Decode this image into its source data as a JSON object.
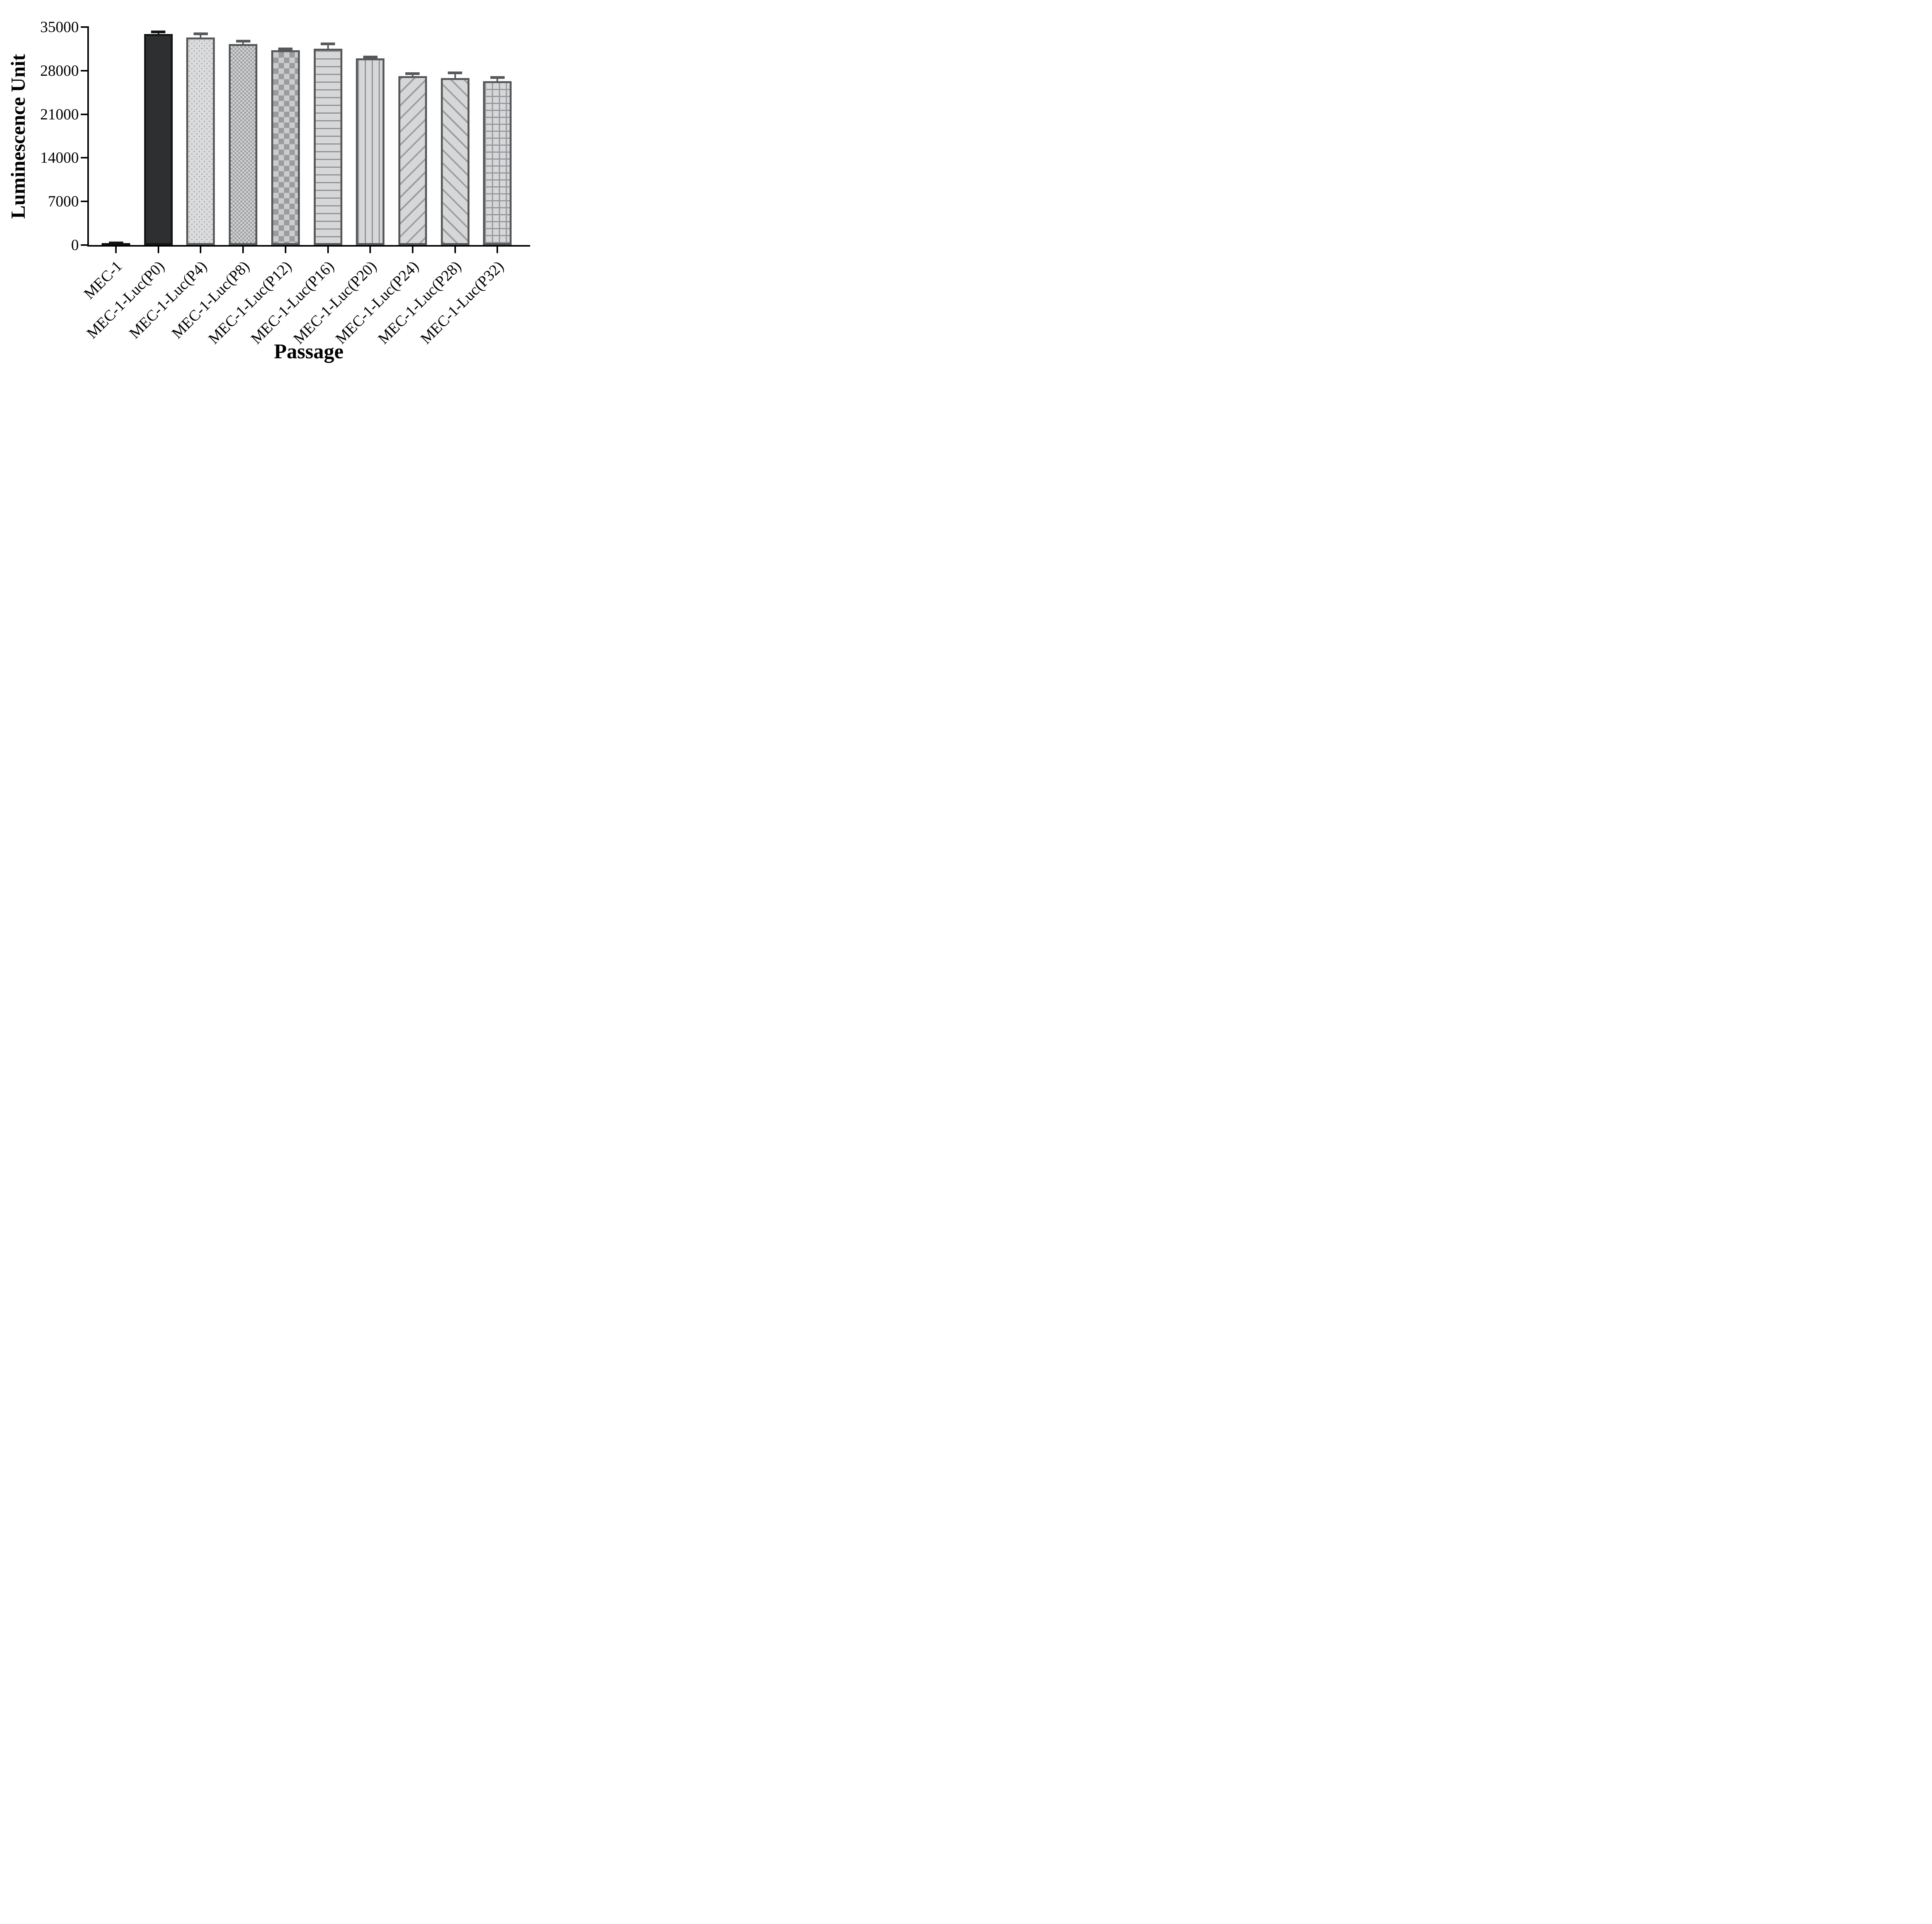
{
  "figure": {
    "background": "#ffffff"
  },
  "chart_data": {
    "type": "bar",
    "title": "",
    "xlabel": "Passage",
    "ylabel": "Luminescence Unit",
    "categories": [
      "MEC-1",
      "MEC-1-Luc(P0)",
      "MEC-1-Luc(P4)",
      "MEC-1-Luc(P8)",
      "MEC-1-Luc(P12)",
      "MEC-1-Luc(P16)",
      "MEC-1-Luc(P20)",
      "MEC-1-Luc(P24)",
      "MEC-1-Luc(P28)",
      "MEC-1-Luc(P32)"
    ],
    "values": [
      300,
      33900,
      33350,
      32300,
      31250,
      31550,
      30000,
      27100,
      26800,
      26300
    ],
    "errors": [
      60,
      300,
      570,
      430,
      250,
      750,
      200,
      420,
      850,
      600
    ],
    "bar_patterns": [
      "solid-black",
      "solid-dark",
      "dots",
      "checker-small",
      "checker-large",
      "hlines",
      "vlines",
      "diag-up",
      "diag-down",
      "grid"
    ],
    "ylim": [
      0,
      35000
    ],
    "yticks": [
      0,
      7000,
      14000,
      21000,
      28000,
      35000
    ],
    "grid": false,
    "legend": "none",
    "error_bar_style": "cap-and-stem",
    "colors": {
      "axis": "#000000",
      "bar_outline": "#57585a",
      "light_fill": "#d6d7d8",
      "pattern_gray": "#96979a",
      "dark_bar_fill": "#2e2f30",
      "black": "#111111"
    }
  }
}
